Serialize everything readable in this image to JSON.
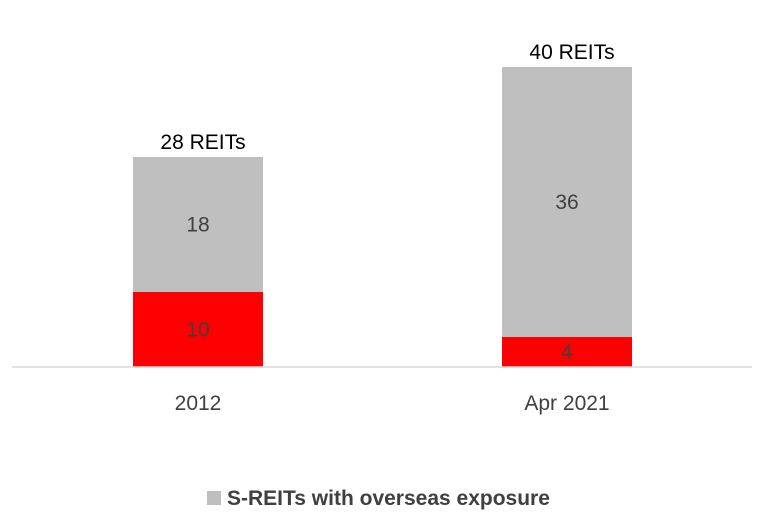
{
  "chart_data": {
    "type": "bar",
    "stacked": true,
    "categories": [
      "2012",
      "Apr 2021"
    ],
    "series": [
      {
        "values": [
          10,
          4
        ],
        "color": "#ff0000"
      },
      {
        "name": "S-REITs with overseas exposure",
        "values": [
          18,
          36
        ],
        "color": "#bfbfbf"
      }
    ],
    "totals": [
      "28 REITs",
      "40 REITs"
    ],
    "ylim": [
      0,
      40
    ],
    "grid": false,
    "legend": "bottom"
  }
}
